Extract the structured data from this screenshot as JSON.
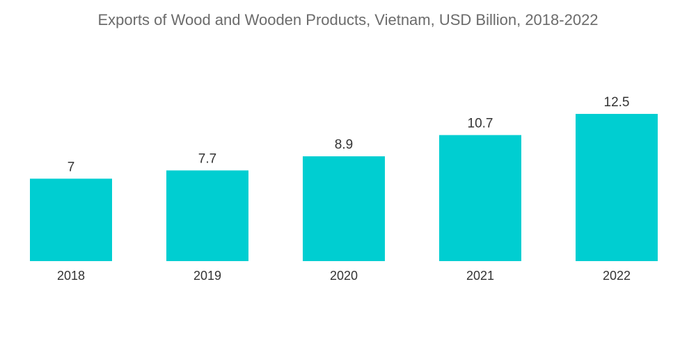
{
  "chart_data": {
    "type": "bar",
    "title": "Exports of Wood and Wooden Products, Vietnam, USD Billion, 2018-2022",
    "categories": [
      "2018",
      "2019",
      "2020",
      "2021",
      "2022"
    ],
    "values": [
      7,
      7.7,
      8.9,
      10.7,
      12.5
    ],
    "value_labels": [
      "7",
      "7.7",
      "8.9",
      "10.7",
      "12.5"
    ],
    "xlabel": "",
    "ylabel": "",
    "ylim": [
      0,
      12.5
    ],
    "grid": false,
    "legend": "none",
    "bar_color": "#00CED1"
  }
}
